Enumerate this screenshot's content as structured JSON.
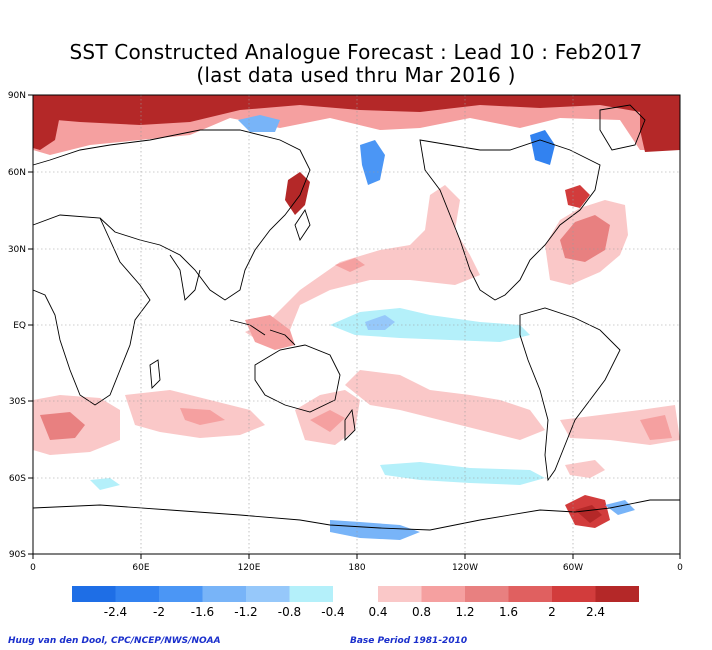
{
  "title": {
    "line1": "SST Constructed Analogue Forecast : Lead 10 : Feb2017",
    "line2": "(last data used thru Mar 2016 )"
  },
  "lat_labels": [
    "90N",
    "60N",
    "30N",
    "EQ",
    "30S",
    "60S",
    "90S"
  ],
  "lon_labels": [
    "0",
    "60E",
    "120E",
    "180",
    "120W",
    "60W",
    "0"
  ],
  "colorbar": {
    "negative_colors": [
      "#1e6ee6",
      "#3282f0",
      "#4b96f5",
      "#78b4f8",
      "#96c8fa",
      "#b4f0fa"
    ],
    "positive_colors": [
      "#fac8c8",
      "#f5a0a0",
      "#e88080",
      "#e06060",
      "#d23c3c",
      "#b42828"
    ],
    "labels": [
      "-2.4",
      "-2",
      "-1.6",
      "-1.2",
      "-0.8",
      "-0.4",
      "0.4",
      "0.8",
      "1.2",
      "1.6",
      "2",
      "2.4"
    ]
  },
  "credits": {
    "left": "Huug van den Dool, CPC/NCEP/NWS/NOAA",
    "right": "Base Period 1981-2010"
  }
}
